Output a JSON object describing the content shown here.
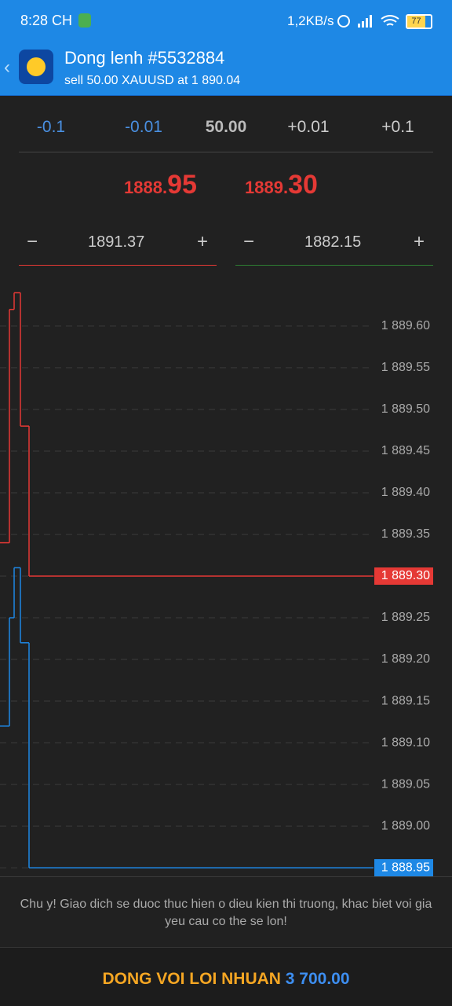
{
  "status_bar": {
    "time": "8:28 CH",
    "speed": "1,2KB/s",
    "battery": "77"
  },
  "header": {
    "title": "Dong lenh #5532884",
    "subtitle": "sell 50.00 XAUUSD at 1 890.04"
  },
  "volume": [
    "-0.1",
    "-0.01",
    "50.00",
    "+0.01",
    "+0.1"
  ],
  "prices": {
    "bid": {
      "main": "1888.",
      "big": "95"
    },
    "ask": {
      "main": "1889.",
      "big": "30"
    }
  },
  "stops": {
    "minus": "−",
    "plus": "+",
    "sl": "1891.37",
    "tp": "1882.15"
  },
  "chart_data": {
    "type": "line",
    "x": [
      0,
      12,
      18,
      26,
      37,
      476
    ],
    "xlim": [
      0,
      476
    ],
    "ylim": [
      1888.935,
      1889.665
    ],
    "yticks": [
      {
        "value": 1889.6,
        "label": "1 889.60"
      },
      {
        "value": 1889.55,
        "label": "1 889.55"
      },
      {
        "value": 1889.5,
        "label": "1 889.50"
      },
      {
        "value": 1889.45,
        "label": "1 889.45"
      },
      {
        "value": 1889.4,
        "label": "1 889.40"
      },
      {
        "value": 1889.35,
        "label": "1 889.35"
      },
      {
        "value": 1889.3,
        "label": "1 889.30"
      },
      {
        "value": 1889.25,
        "label": "1 889.25"
      },
      {
        "value": 1889.2,
        "label": "1 889.20"
      },
      {
        "value": 1889.15,
        "label": "1 889.15"
      },
      {
        "value": 1889.1,
        "label": "1 889.10"
      },
      {
        "value": 1889.05,
        "label": "1 889.05"
      },
      {
        "value": 1889.0,
        "label": "1 889.00"
      },
      {
        "value": 1888.95,
        "label": "1 888.95"
      }
    ],
    "grid": true,
    "series": [
      {
        "color": "#e53935",
        "values": [
          1889.34,
          1889.62,
          1889.64,
          1889.48,
          1889.3,
          1889.3
        ],
        "last_label": "1 889.30"
      },
      {
        "color": "#1e88e5",
        "values": [
          1889.12,
          1889.25,
          1889.31,
          1889.22,
          1888.95,
          1888.95
        ],
        "last_label": "1 888.95"
      }
    ]
  },
  "notice": "Chu y! Giao dich se duoc thuc hien o dieu kien thi truong, khac biet voi gia yeu cau co the se lon!",
  "button": {
    "label": "DONG VOI LOI NHUAN",
    "profit": "3 700.00"
  }
}
